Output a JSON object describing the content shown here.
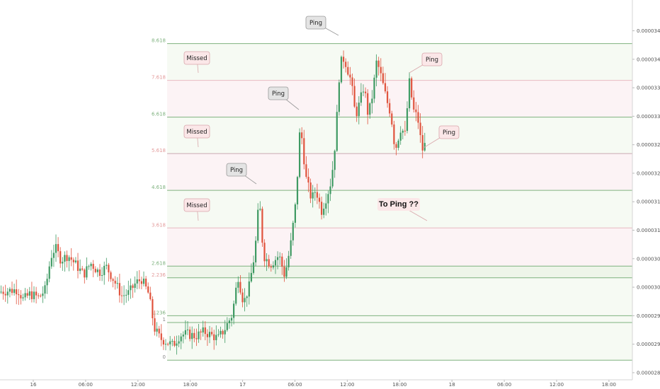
{
  "chart_data": {
    "type": "candlestick",
    "y_axis_ticks": [
      "0.00002850",
      "0.00002900",
      "0.00002950",
      "0.00003000",
      "0.00003050",
      "0.00003100",
      "0.00003150",
      "0.00003200",
      "0.00003250",
      "0.00003300",
      "0.00003350",
      "0.00003400",
      "0.00003450"
    ],
    "y_axis_values": [
      2.85e-05,
      2.9e-05,
      2.95e-05,
      3e-05,
      3.05e-05,
      3.1e-05,
      3.15e-05,
      3.2e-05,
      3.25e-05,
      3.3e-05,
      3.35e-05,
      3.4e-05,
      3.45e-05
    ],
    "ylim": [
      2.8375e-05,
      3.504e-05
    ],
    "x_axis_ticks": [
      "16",
      "06:00",
      "12:00",
      "18:00",
      "17",
      "06:00",
      "12:00",
      "18:00",
      "18",
      "06:00",
      "12:00",
      "18:00"
    ],
    "fib_levels": [
      {
        "label": "0",
        "value": 2.872e-05,
        "line_color": "#7fb27f",
        "label_color": "#888888"
      },
      {
        "label": "1",
        "value": 2.938e-05,
        "line_color": "#7fb27f",
        "label_color": "#888888"
      },
      {
        "label": "1.236",
        "value": 2.95e-05,
        "line_color": "#7fb27f",
        "label_color": "#7fb27f"
      },
      {
        "label": "2.236",
        "value": 3.0165e-05,
        "line_color": "#7fb27f",
        "label_color": "#e39b9b"
      },
      {
        "label": "2.618",
        "value": 3.037e-05,
        "line_color": "#7fb27f",
        "label_color": "#7fb27f"
      },
      {
        "label": "3.618",
        "value": 3.104e-05,
        "line_color": "#e8b9c2",
        "label_color": "#e39b9b"
      },
      {
        "label": "4.618",
        "value": 3.17e-05,
        "line_color": "#7fb27f",
        "label_color": "#7fb27f"
      },
      {
        "label": "5.618",
        "value": 3.2345e-05,
        "line_color": "#c8a8b2",
        "label_color": "#e39b9b"
      },
      {
        "label": "6.618",
        "value": 3.2985e-05,
        "line_color": "#7fb27f",
        "label_color": "#7fb27f"
      },
      {
        "label": "7.618",
        "value": 3.363e-05,
        "line_color": "#e8b9c2",
        "label_color": "#e39b9b"
      },
      {
        "label": "8.618",
        "value": 3.4275e-05,
        "line_color": "#7fb27f",
        "label_color": "#7fb27f"
      }
    ],
    "callouts": [
      {
        "text": "Ping",
        "style": "gray"
      },
      {
        "text": "Missed",
        "style": "pink"
      },
      {
        "text": "Ping",
        "style": "gray"
      },
      {
        "text": "Missed",
        "style": "pink"
      },
      {
        "text": "Ping",
        "style": "gray"
      },
      {
        "text": "Missed",
        "style": "pink"
      },
      {
        "text": "Ping",
        "style": "pink"
      },
      {
        "text": "Ping",
        "style": "pink"
      },
      {
        "text": "To Ping ??",
        "style": "bold"
      }
    ],
    "colors": {
      "up": "#26a69a",
      "up_body": "#3f9a63",
      "down": "#e0533d",
      "grid": "#f0f0f0",
      "green_band": "#f6faf3",
      "pink_band": "#fcf3f5"
    },
    "grid": false,
    "legend": "none"
  }
}
